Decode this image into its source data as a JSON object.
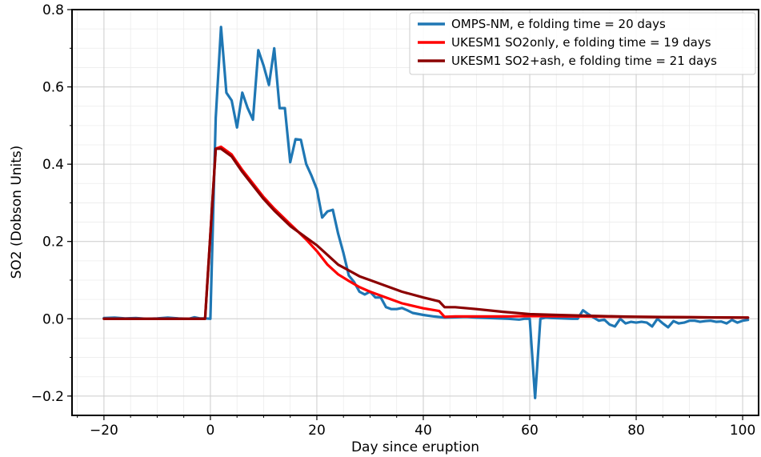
{
  "chart_data": {
    "type": "line",
    "xlabel": "Day since eruption",
    "ylabel": "SO2 (Dobson Units)",
    "xlim": [
      -26,
      103
    ],
    "ylim": [
      -0.25,
      0.8
    ],
    "xticks": [
      -20,
      0,
      20,
      40,
      60,
      80,
      100
    ],
    "xtick_labels": [
      "−20",
      "0",
      "20",
      "40",
      "60",
      "80",
      "100"
    ],
    "yticks": [
      -0.2,
      0.0,
      0.2,
      0.4,
      0.6,
      0.8
    ],
    "ytick_labels": [
      "−0.2",
      "0.0",
      "0.2",
      "0.4",
      "0.6",
      "0.8"
    ],
    "grid": true,
    "legend_position": "top-right",
    "series": [
      {
        "name": "OMPS-NM, e folding time = 20 days",
        "color": "#1f77b4",
        "x": [
          -20,
          -18,
          -16,
          -14,
          -12,
          -10,
          -8,
          -6,
          -4,
          -3,
          -2,
          -1,
          0,
          1,
          2,
          3,
          4,
          5,
          6,
          7,
          8,
          9,
          10,
          11,
          12,
          13,
          14,
          15,
          16,
          17,
          18,
          19,
          20,
          21,
          22,
          23,
          24,
          25,
          26,
          27,
          28,
          29,
          30,
          31,
          32,
          33,
          34,
          35,
          36,
          37,
          38,
          40,
          42,
          44,
          46,
          48,
          50,
          52,
          54,
          56,
          58,
          59,
          60,
          61,
          62,
          63,
          64,
          66,
          68,
          69,
          70,
          71,
          72,
          73,
          74,
          75,
          76,
          77,
          78,
          79,
          80,
          81,
          82,
          83,
          84,
          85,
          86,
          87,
          88,
          89,
          90,
          91,
          92,
          93,
          94,
          95,
          96,
          97,
          98,
          99,
          100,
          101
        ],
        "y": [
          0.002,
          0.003,
          0.001,
          0.002,
          0.0,
          0.001,
          0.003,
          0.001,
          0.0,
          0.004,
          0.001,
          0.001,
          0.0,
          0.52,
          0.755,
          0.585,
          0.565,
          0.495,
          0.585,
          0.545,
          0.515,
          0.695,
          0.655,
          0.605,
          0.7,
          0.545,
          0.545,
          0.405,
          0.465,
          0.463,
          0.4,
          0.37,
          0.335,
          0.262,
          0.278,
          0.282,
          0.22,
          0.17,
          0.112,
          0.095,
          0.07,
          0.063,
          0.07,
          0.055,
          0.055,
          0.03,
          0.025,
          0.025,
          0.028,
          0.022,
          0.015,
          0.01,
          0.006,
          0.003,
          0.004,
          0.005,
          0.003,
          0.002,
          0.001,
          0.0,
          -0.002,
          0.0,
          0.0,
          -0.205,
          0.0,
          0.003,
          0.002,
          0.001,
          0.0,
          0.0,
          0.022,
          0.012,
          0.003,
          -0.005,
          -0.002,
          -0.015,
          -0.02,
          0.0,
          -0.012,
          -0.008,
          -0.01,
          -0.008,
          -0.01,
          -0.02,
          0.0,
          -0.012,
          -0.022,
          -0.006,
          -0.012,
          -0.01,
          -0.005,
          -0.005,
          -0.008,
          -0.006,
          -0.005,
          -0.008,
          -0.007,
          -0.012,
          -0.003,
          -0.01,
          -0.005,
          -0.003
        ]
      },
      {
        "name": "UKESM1 SO2only, e folding time = 19 days",
        "color": "#ff0000",
        "x": [
          -20,
          -1,
          1,
          2,
          4,
          6,
          8,
          10,
          12,
          15,
          18,
          20,
          22,
          24,
          26,
          28,
          30,
          33,
          36,
          40,
          43,
          44,
          46,
          50,
          55,
          60,
          70,
          80,
          90,
          101
        ],
        "y": [
          0.0,
          0.0,
          0.44,
          0.445,
          0.425,
          0.385,
          0.35,
          0.315,
          0.285,
          0.245,
          0.205,
          0.175,
          0.14,
          0.115,
          0.098,
          0.082,
          0.07,
          0.055,
          0.04,
          0.027,
          0.02,
          0.005,
          0.006,
          0.006,
          0.006,
          0.007,
          0.006,
          0.005,
          0.004,
          0.003
        ]
      },
      {
        "name": "UKESM1 SO2+ash, e folding time = 21 days",
        "color": "#8b0000",
        "x": [
          -20,
          -1,
          1,
          2,
          4,
          6,
          8,
          10,
          12,
          15,
          18,
          20,
          22,
          24,
          26,
          28,
          30,
          33,
          36,
          40,
          43,
          44,
          46,
          50,
          55,
          60,
          65,
          70,
          80,
          90,
          101
        ],
        "y": [
          0.0,
          0.0,
          0.44,
          0.44,
          0.42,
          0.38,
          0.345,
          0.31,
          0.28,
          0.24,
          0.21,
          0.19,
          0.165,
          0.14,
          0.125,
          0.11,
          0.1,
          0.085,
          0.07,
          0.055,
          0.045,
          0.03,
          0.03,
          0.025,
          0.018,
          0.012,
          0.01,
          0.008,
          0.005,
          0.004,
          0.003
        ]
      }
    ]
  }
}
